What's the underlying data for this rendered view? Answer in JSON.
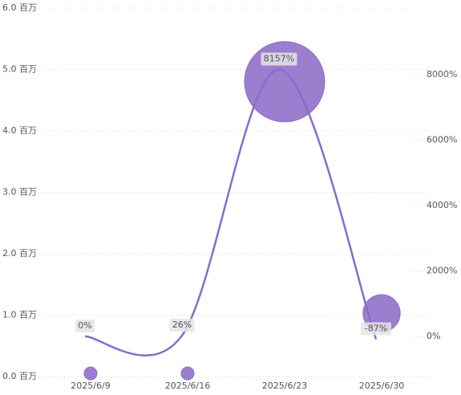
{
  "chart_data": {
    "type": "bubble-line",
    "categories": [
      "2025/6/9",
      "2025/6/16",
      "2025/6/23",
      "2025/6/30"
    ],
    "series": [
      {
        "type": "bubble",
        "color": "#8e6cc8",
        "values": [
          0.05,
          0.05,
          4.8,
          1.03
        ]
      },
      {
        "type": "line",
        "axis": "y2",
        "color": "#8a6bc9",
        "values": [
          0,
          26,
          8157,
          -87
        ],
        "value_labels": [
          "0%",
          "26%",
          "8157%",
          "-87%"
        ]
      }
    ],
    "ylim": [
      0,
      6
    ],
    "yticks": [
      {
        "value": 0,
        "label": "0.0 百万"
      },
      {
        "value": 1,
        "label": "1.0 百万"
      },
      {
        "value": 2,
        "label": "2.0 百万"
      },
      {
        "value": 3,
        "label": "3.0 百万"
      },
      {
        "value": 4,
        "label": "4.0 百万"
      },
      {
        "value": 5,
        "label": "5.0 百万"
      },
      {
        "value": 6,
        "label": "6.0 百万"
      }
    ],
    "y2lim": [
      -1227,
      10037
    ],
    "y2ticks": [
      {
        "value": 0,
        "label": "0%"
      },
      {
        "value": 2000,
        "label": "2000%"
      },
      {
        "value": 4000,
        "label": "4000%"
      },
      {
        "value": 6000,
        "label": "6000%"
      },
      {
        "value": 8000,
        "label": "8000%"
      }
    ],
    "grid": true
  }
}
